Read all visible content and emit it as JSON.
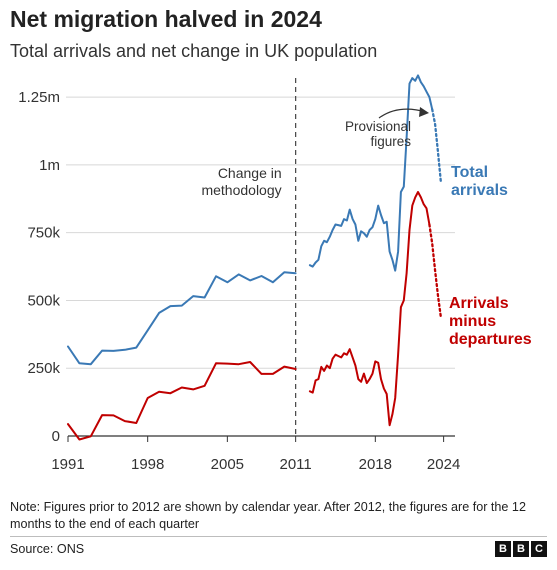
{
  "header": {
    "title": "Net migration halved in 2024",
    "subtitle": "Total arrivals and net change in UK population"
  },
  "footer": {
    "note": "Note: Figures prior to 2012 are shown by calendar year. After 2012, the figures are for the 12 months to the end of each quarter",
    "source": "Source: ONS",
    "logo_letters": [
      "B",
      "B",
      "C"
    ]
  },
  "colors": {
    "total_arrivals": "#3a79b5",
    "net_migration": "#c00000",
    "grid": "#d8d8d8",
    "axis": "#333333"
  },
  "chart_data": {
    "type": "line",
    "title": "Net migration halved in 2024",
    "subtitle": "Total arrivals and net change in UK population",
    "xlim": [
      1991,
      2025
    ],
    "ylim": [
      0,
      1350000
    ],
    "x_ticks": [
      1991,
      1998,
      2005,
      2011,
      2018,
      2024
    ],
    "x_tick_labels": [
      "1991",
      "1998",
      "2005",
      "2011",
      "2018",
      "2024"
    ],
    "y_ticks": [
      0,
      250000,
      500000,
      750000,
      1000000,
      1250000
    ],
    "y_tick_labels": [
      "0",
      "250k",
      "500k",
      "750k",
      "1m",
      "1.25m"
    ],
    "grid": true,
    "legend": "inline labels at right end of lines",
    "annotations": [
      {
        "text": "Change in\nmethodology",
        "x": 2011,
        "type": "dashed vertical line"
      },
      {
        "text": "Provisional\nfigures",
        "x": 2024,
        "type": "arrow to dotted segment"
      }
    ],
    "series": [
      {
        "name": "Total arrivals",
        "annual_x": [
          1991,
          1992,
          1993,
          1994,
          1995,
          1996,
          1997,
          1998,
          1999,
          2000,
          2001,
          2002,
          2003,
          2004,
          2005,
          2006,
          2007,
          2008,
          2009,
          2010,
          2011
        ],
        "annual_values": [
          330000,
          268000,
          265000,
          315000,
          314000,
          318000,
          326000,
          390000,
          454000,
          479000,
          481000,
          516000,
          511000,
          589000,
          567000,
          596000,
          574000,
          590000,
          567000,
          604000,
          600000
        ],
        "quarterly_x": [
          2012.25,
          2012.5,
          2012.75,
          2013.0,
          2013.25,
          2013.5,
          2013.75,
          2014.0,
          2014.25,
          2014.5,
          2014.75,
          2015.0,
          2015.25,
          2015.5,
          2015.75,
          2016.0,
          2016.25,
          2016.5,
          2016.75,
          2017.0,
          2017.25,
          2017.5,
          2017.75,
          2018.0,
          2018.25,
          2018.5,
          2018.75,
          2019.0,
          2019.25,
          2019.5,
          2019.75,
          2020.0,
          2020.25,
          2020.5,
          2020.75,
          2021.0,
          2021.25,
          2021.5,
          2021.75,
          2022.0,
          2022.25,
          2022.5,
          2022.75,
          2023.0,
          2023.25,
          2023.5,
          2023.75
        ],
        "quarterly_values": [
          630000,
          625000,
          640000,
          650000,
          700000,
          720000,
          715000,
          735000,
          760000,
          780000,
          778000,
          775000,
          800000,
          795000,
          835000,
          800000,
          780000,
          720000,
          755000,
          748000,
          735000,
          760000,
          770000,
          800000,
          850000,
          815000,
          785000,
          790000,
          680000,
          650000,
          610000,
          680000,
          900000,
          920000,
          1100000,
          1300000,
          1320000,
          1310000,
          1330000,
          1305000,
          1290000,
          1270000,
          1250000,
          1205000,
          1150000,
          1050000,
          940000
        ],
        "provisional_from_x": 2023.0
      },
      {
        "name": "Arrivals minus departures",
        "annual_x": [
          1991,
          1992,
          1993,
          1994,
          1995,
          1996,
          1997,
          1998,
          1999,
          2000,
          2001,
          2002,
          2003,
          2004,
          2005,
          2006,
          2007,
          2008,
          2009,
          2010,
          2011
        ],
        "annual_values": [
          44000,
          -13000,
          -1000,
          77000,
          76000,
          55000,
          48000,
          140000,
          163000,
          158000,
          179000,
          172000,
          185000,
          268000,
          267000,
          265000,
          273000,
          229000,
          229000,
          256000,
          247000
        ],
        "quarterly_x": [
          2012.25,
          2012.5,
          2012.75,
          2013.0,
          2013.25,
          2013.5,
          2013.75,
          2014.0,
          2014.25,
          2014.5,
          2014.75,
          2015.0,
          2015.25,
          2015.5,
          2015.75,
          2016.0,
          2016.25,
          2016.5,
          2016.75,
          2017.0,
          2017.25,
          2017.5,
          2017.75,
          2018.0,
          2018.25,
          2018.5,
          2018.75,
          2019.0,
          2019.25,
          2019.5,
          2019.75,
          2020.0,
          2020.25,
          2020.5,
          2020.75,
          2021.0,
          2021.25,
          2021.5,
          2021.75,
          2022.0,
          2022.25,
          2022.5,
          2022.75,
          2023.0,
          2023.25,
          2023.5,
          2023.75
        ],
        "quarterly_values": [
          165000,
          160000,
          205000,
          210000,
          255000,
          240000,
          260000,
          250000,
          285000,
          300000,
          295000,
          290000,
          305000,
          300000,
          320000,
          290000,
          260000,
          210000,
          200000,
          230000,
          195000,
          210000,
          230000,
          275000,
          270000,
          210000,
          175000,
          155000,
          40000,
          80000,
          140000,
          300000,
          475000,
          500000,
          600000,
          760000,
          850000,
          880000,
          900000,
          880000,
          855000,
          840000,
          780000,
          710000,
          610000,
          520000,
          440000
        ],
        "provisional_from_x": 2022.75
      }
    ]
  }
}
